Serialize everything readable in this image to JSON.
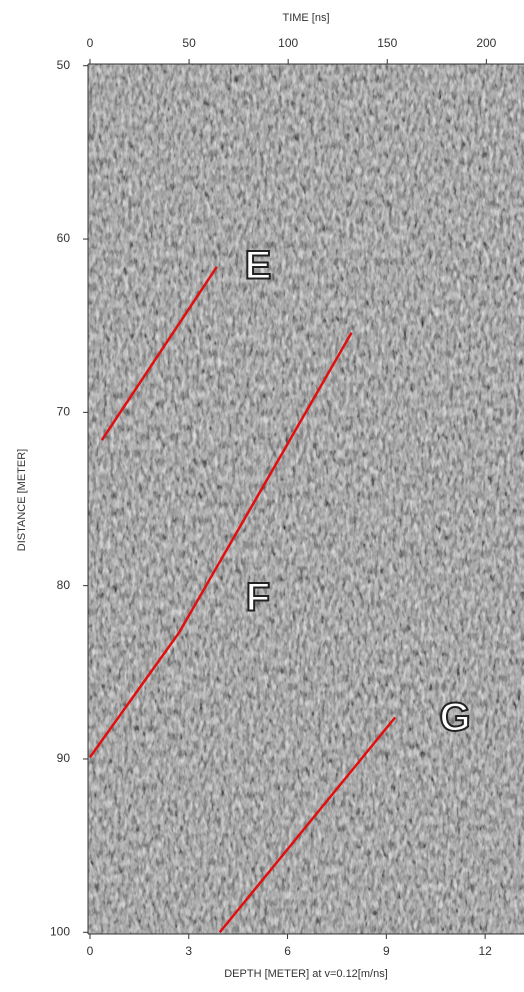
{
  "chart_data": {
    "type": "radargram",
    "top_axis_label": "TIME [ns]",
    "bottom_axis_label": "DEPTH [METER] at v=0.12[m/ns]",
    "y_axis_label": "DISTANCE [METER]",
    "xlim": [
      -1,
      219
    ],
    "xticks": [
      0,
      50,
      100,
      150,
      200
    ],
    "x2lim": [
      -0.06,
      13.18
    ],
    "x2ticks": [
      0,
      3,
      6,
      9,
      12
    ],
    "ylim": [
      49.9,
      100.1
    ],
    "yticks": [
      50,
      60,
      70,
      80,
      90,
      100
    ],
    "annotations": [
      {
        "label": "E",
        "color": "#e01010",
        "time": [
          6,
          64
        ],
        "distance": [
          71.6,
          61.6
        ]
      },
      {
        "label": "F",
        "color": "#e01010",
        "time": [
          0,
          45,
          132
        ],
        "distance": [
          89.9,
          82.7,
          65.4
        ]
      },
      {
        "label": "G",
        "color": "#e01010",
        "time": [
          65.5,
          154
        ],
        "distance": [
          100,
          87.6
        ]
      }
    ]
  }
}
